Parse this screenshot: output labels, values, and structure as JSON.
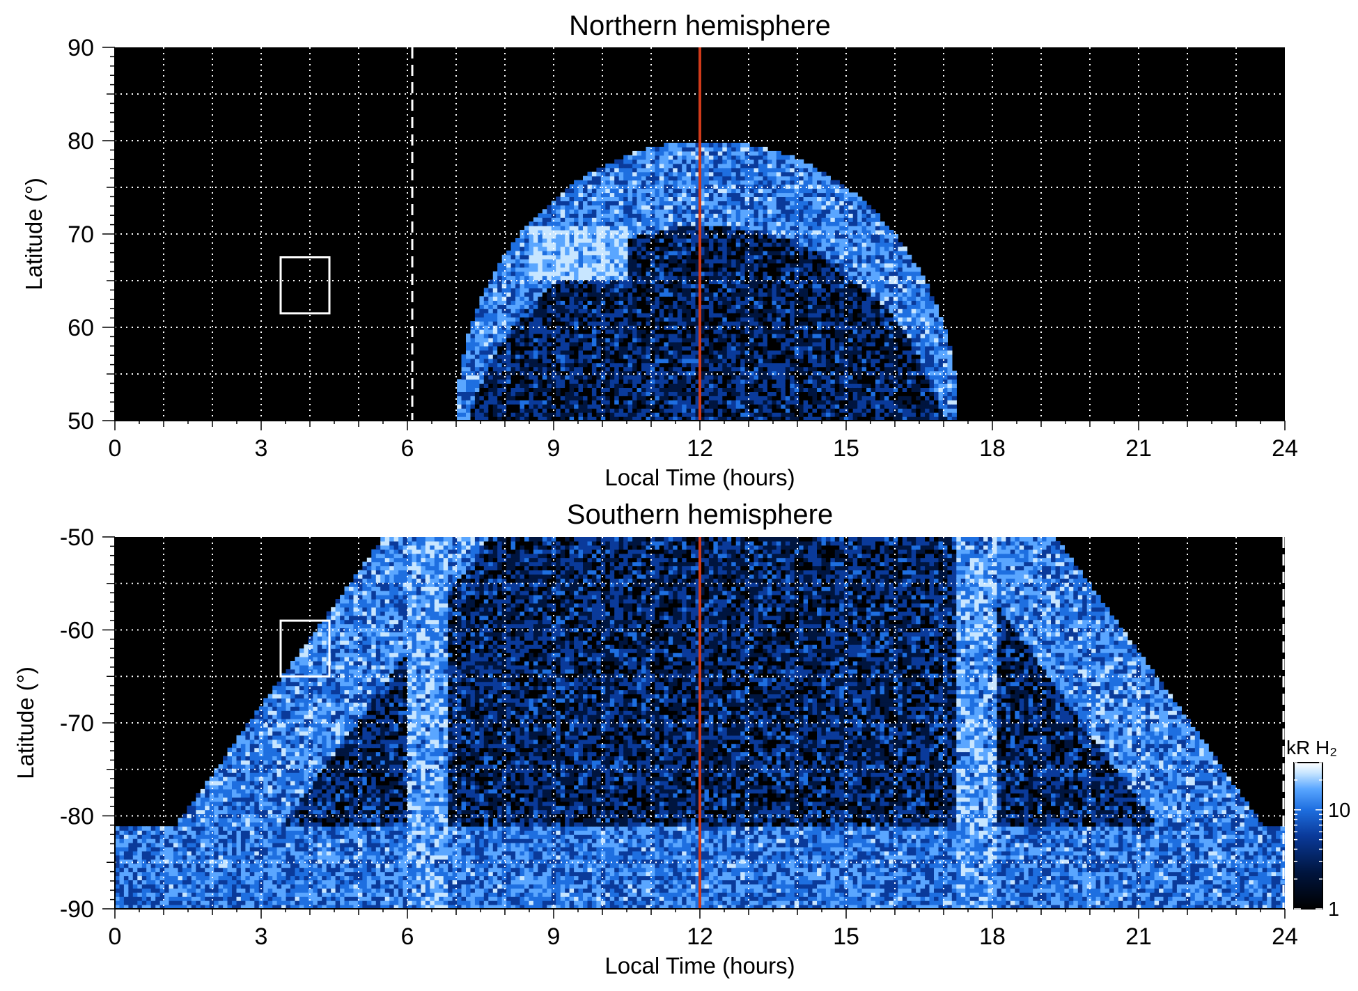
{
  "chart_data": [
    {
      "type": "heatmap",
      "title": "Northern hemisphere",
      "xlabel": "Local Time (hours)",
      "ylabel": "Latitude (°)",
      "xlim": [
        0,
        24
      ],
      "ylim": [
        50,
        90
      ],
      "x_ticks": [
        0,
        3,
        6,
        9,
        12,
        15,
        18,
        21,
        24
      ],
      "y_ticks": [
        50,
        60,
        70,
        80,
        90
      ],
      "grid": true,
      "grid_style": "white dotted every 1 hour / 5 degrees",
      "background_color": "#000000",
      "colormap": [
        "#000000",
        "#00153f",
        "#0a3a9a",
        "#1e6fe0",
        "#5aa6ff",
        "#c8e6ff",
        "#ffffff"
      ],
      "emission_region": {
        "local_time_range": [
          7.0,
          17.3
        ],
        "max_latitude": 80,
        "brightest_patch": {
          "local_time": [
            8.5,
            10.5
          ],
          "latitude": [
            65,
            71
          ]
        }
      },
      "noon_line": {
        "local_time": 12,
        "color": "#d03a1a"
      },
      "dashed_line": {
        "local_time": 6.1,
        "color": "#ffffff"
      },
      "reference_box": {
        "local_time": [
          3.4,
          4.4
        ],
        "latitude": [
          61.5,
          67.5
        ]
      }
    },
    {
      "type": "heatmap",
      "title": "Southern hemisphere",
      "xlabel": "Local Time (hours)",
      "ylabel": "Latitude (°)",
      "xlim": [
        0,
        24
      ],
      "ylim": [
        -90,
        -50
      ],
      "x_ticks": [
        0,
        3,
        6,
        9,
        12,
        15,
        18,
        21,
        24
      ],
      "y_ticks": [
        -90,
        -80,
        -70,
        -60,
        -50
      ],
      "grid": true,
      "grid_style": "white dotted every 1 hour / 5 degrees",
      "background_color": "#000000",
      "colormap": [
        "#000000",
        "#00153f",
        "#0a3a9a",
        "#1e6fe0",
        "#5aa6ff",
        "#c8e6ff",
        "#ffffff"
      ],
      "emission_region": {
        "local_time_range_at_minus_50": [
          5.5,
          19.3
        ],
        "full_coverage_below_latitude": -81
      },
      "noon_line": {
        "local_time": 12,
        "color": "#d03a1a"
      },
      "dashed_line": {
        "local_time": 24,
        "color": "#ffffff"
      },
      "reference_box": {
        "local_time": [
          3.4,
          4.4
        ],
        "latitude": [
          -65,
          -59
        ]
      },
      "colorbar": {
        "unit": "kR H₂",
        "scale": "log",
        "range": [
          1,
          30
        ],
        "tick_labels": [
          "1",
          "10"
        ],
        "tick_values": [
          1,
          10
        ]
      }
    }
  ]
}
